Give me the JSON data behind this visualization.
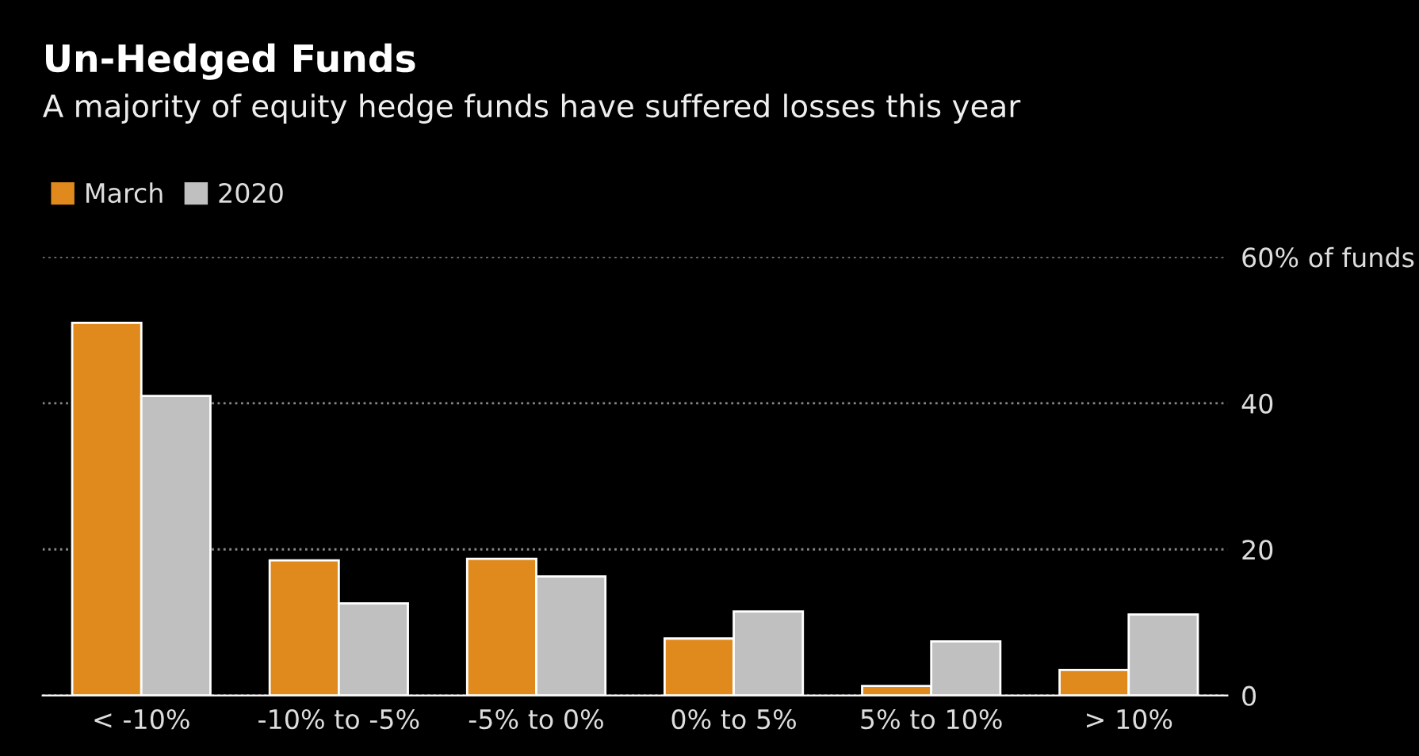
{
  "chart_data": {
    "type": "bar",
    "title": "Un-Hedged Funds",
    "subtitle": "A majority of equity hedge funds have suffered losses this year",
    "categories": [
      "< -10%",
      "-10% to -5%",
      "-5% to 0%",
      "0% to 5%",
      "5% to 10%",
      "> 10%"
    ],
    "series": [
      {
        "name": "March",
        "color": "#e08a1e",
        "values": [
          51,
          18.5,
          18.7,
          7.8,
          1.3,
          3.5
        ]
      },
      {
        "name": "2020",
        "color": "#c0c0c0",
        "values": [
          41,
          12.6,
          16.3,
          11.5,
          7.4,
          11.1
        ]
      }
    ],
    "ylim": [
      0,
      60
    ],
    "yticks": [
      0,
      20,
      40,
      {
        "value": 60,
        "label": "60% of funds"
      }
    ],
    "grid": "y",
    "legend": "top left"
  }
}
